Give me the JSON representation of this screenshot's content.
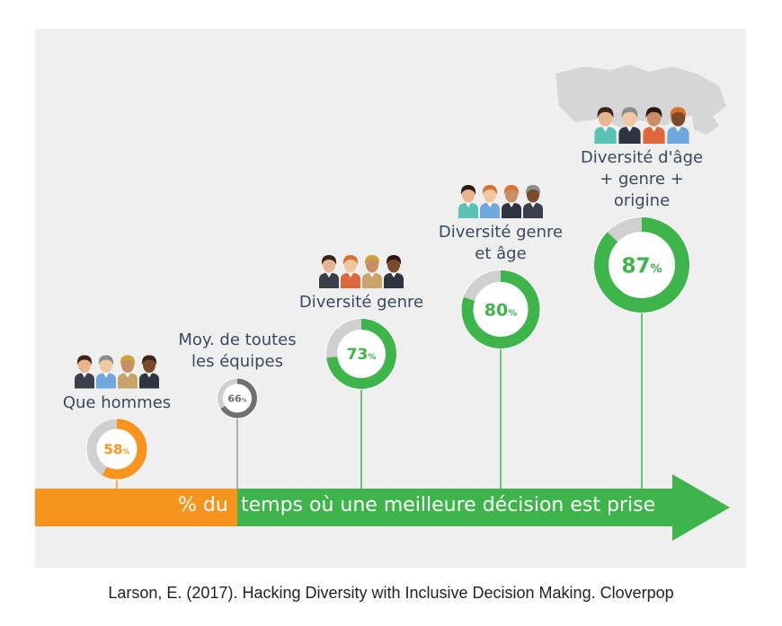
{
  "chart_data": {
    "type": "bar",
    "title": "",
    "axis_caption_parts": [
      "% du",
      "temps où une meilleure décision est prise"
    ],
    "categories": [
      "Que hommes",
      "Moy. de toutes\nles équipes",
      "Diversité genre",
      "Diversité genre\net âge",
      "Diversité d'âge\n+ genre +\norigine"
    ],
    "values": [
      58,
      66,
      73,
      80,
      87
    ],
    "value_labels": [
      "58",
      "66",
      "73",
      "80",
      "87"
    ],
    "unit": "%",
    "ylim": [
      0,
      100
    ],
    "colors": {
      "orange": "#f7941d",
      "green": "#3db54a",
      "gray": "#707070",
      "ring_bg": "#d0d0d0",
      "stem": "#9a9a9a"
    },
    "series_colors": [
      "#f7941d",
      "#707070",
      "#3db54a",
      "#3db54a",
      "#3db54a"
    ]
  },
  "citation": "Larson, E. (2017). Hacking Diversity with Inclusive Decision Making. Cloverpop"
}
